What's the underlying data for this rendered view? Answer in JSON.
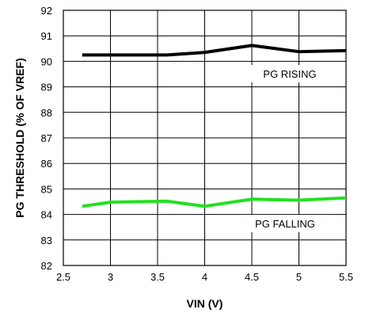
{
  "chart_data": {
    "type": "line",
    "title": "",
    "xlabel": "VIN (V)",
    "ylabel": "PG THRESHOLD (% OF VREF)",
    "xlim": [
      2.5,
      5.5
    ],
    "ylim": [
      82,
      92
    ],
    "x_ticks": [
      "2.5",
      "3",
      "3.5",
      "4",
      "4.5",
      "5",
      "5.5"
    ],
    "y_ticks": [
      "82",
      "83",
      "84",
      "85",
      "86",
      "87",
      "88",
      "89",
      "90",
      "91",
      "92"
    ],
    "grid": true,
    "legend": "none",
    "series": [
      {
        "name": "PG RISING",
        "color": "#000000",
        "x": [
          2.7,
          3.0,
          3.3,
          3.6,
          4.0,
          4.5,
          5.0,
          5.5
        ],
        "y": [
          90.25,
          90.25,
          90.25,
          90.25,
          90.35,
          90.62,
          90.38,
          90.42
        ]
      },
      {
        "name": "PG FALLING",
        "color": "#22e022",
        "x": [
          2.7,
          3.0,
          3.6,
          4.0,
          4.5,
          5.0,
          5.5
        ],
        "y": [
          84.32,
          84.48,
          84.52,
          84.32,
          84.6,
          84.56,
          84.65
        ]
      }
    ]
  }
}
